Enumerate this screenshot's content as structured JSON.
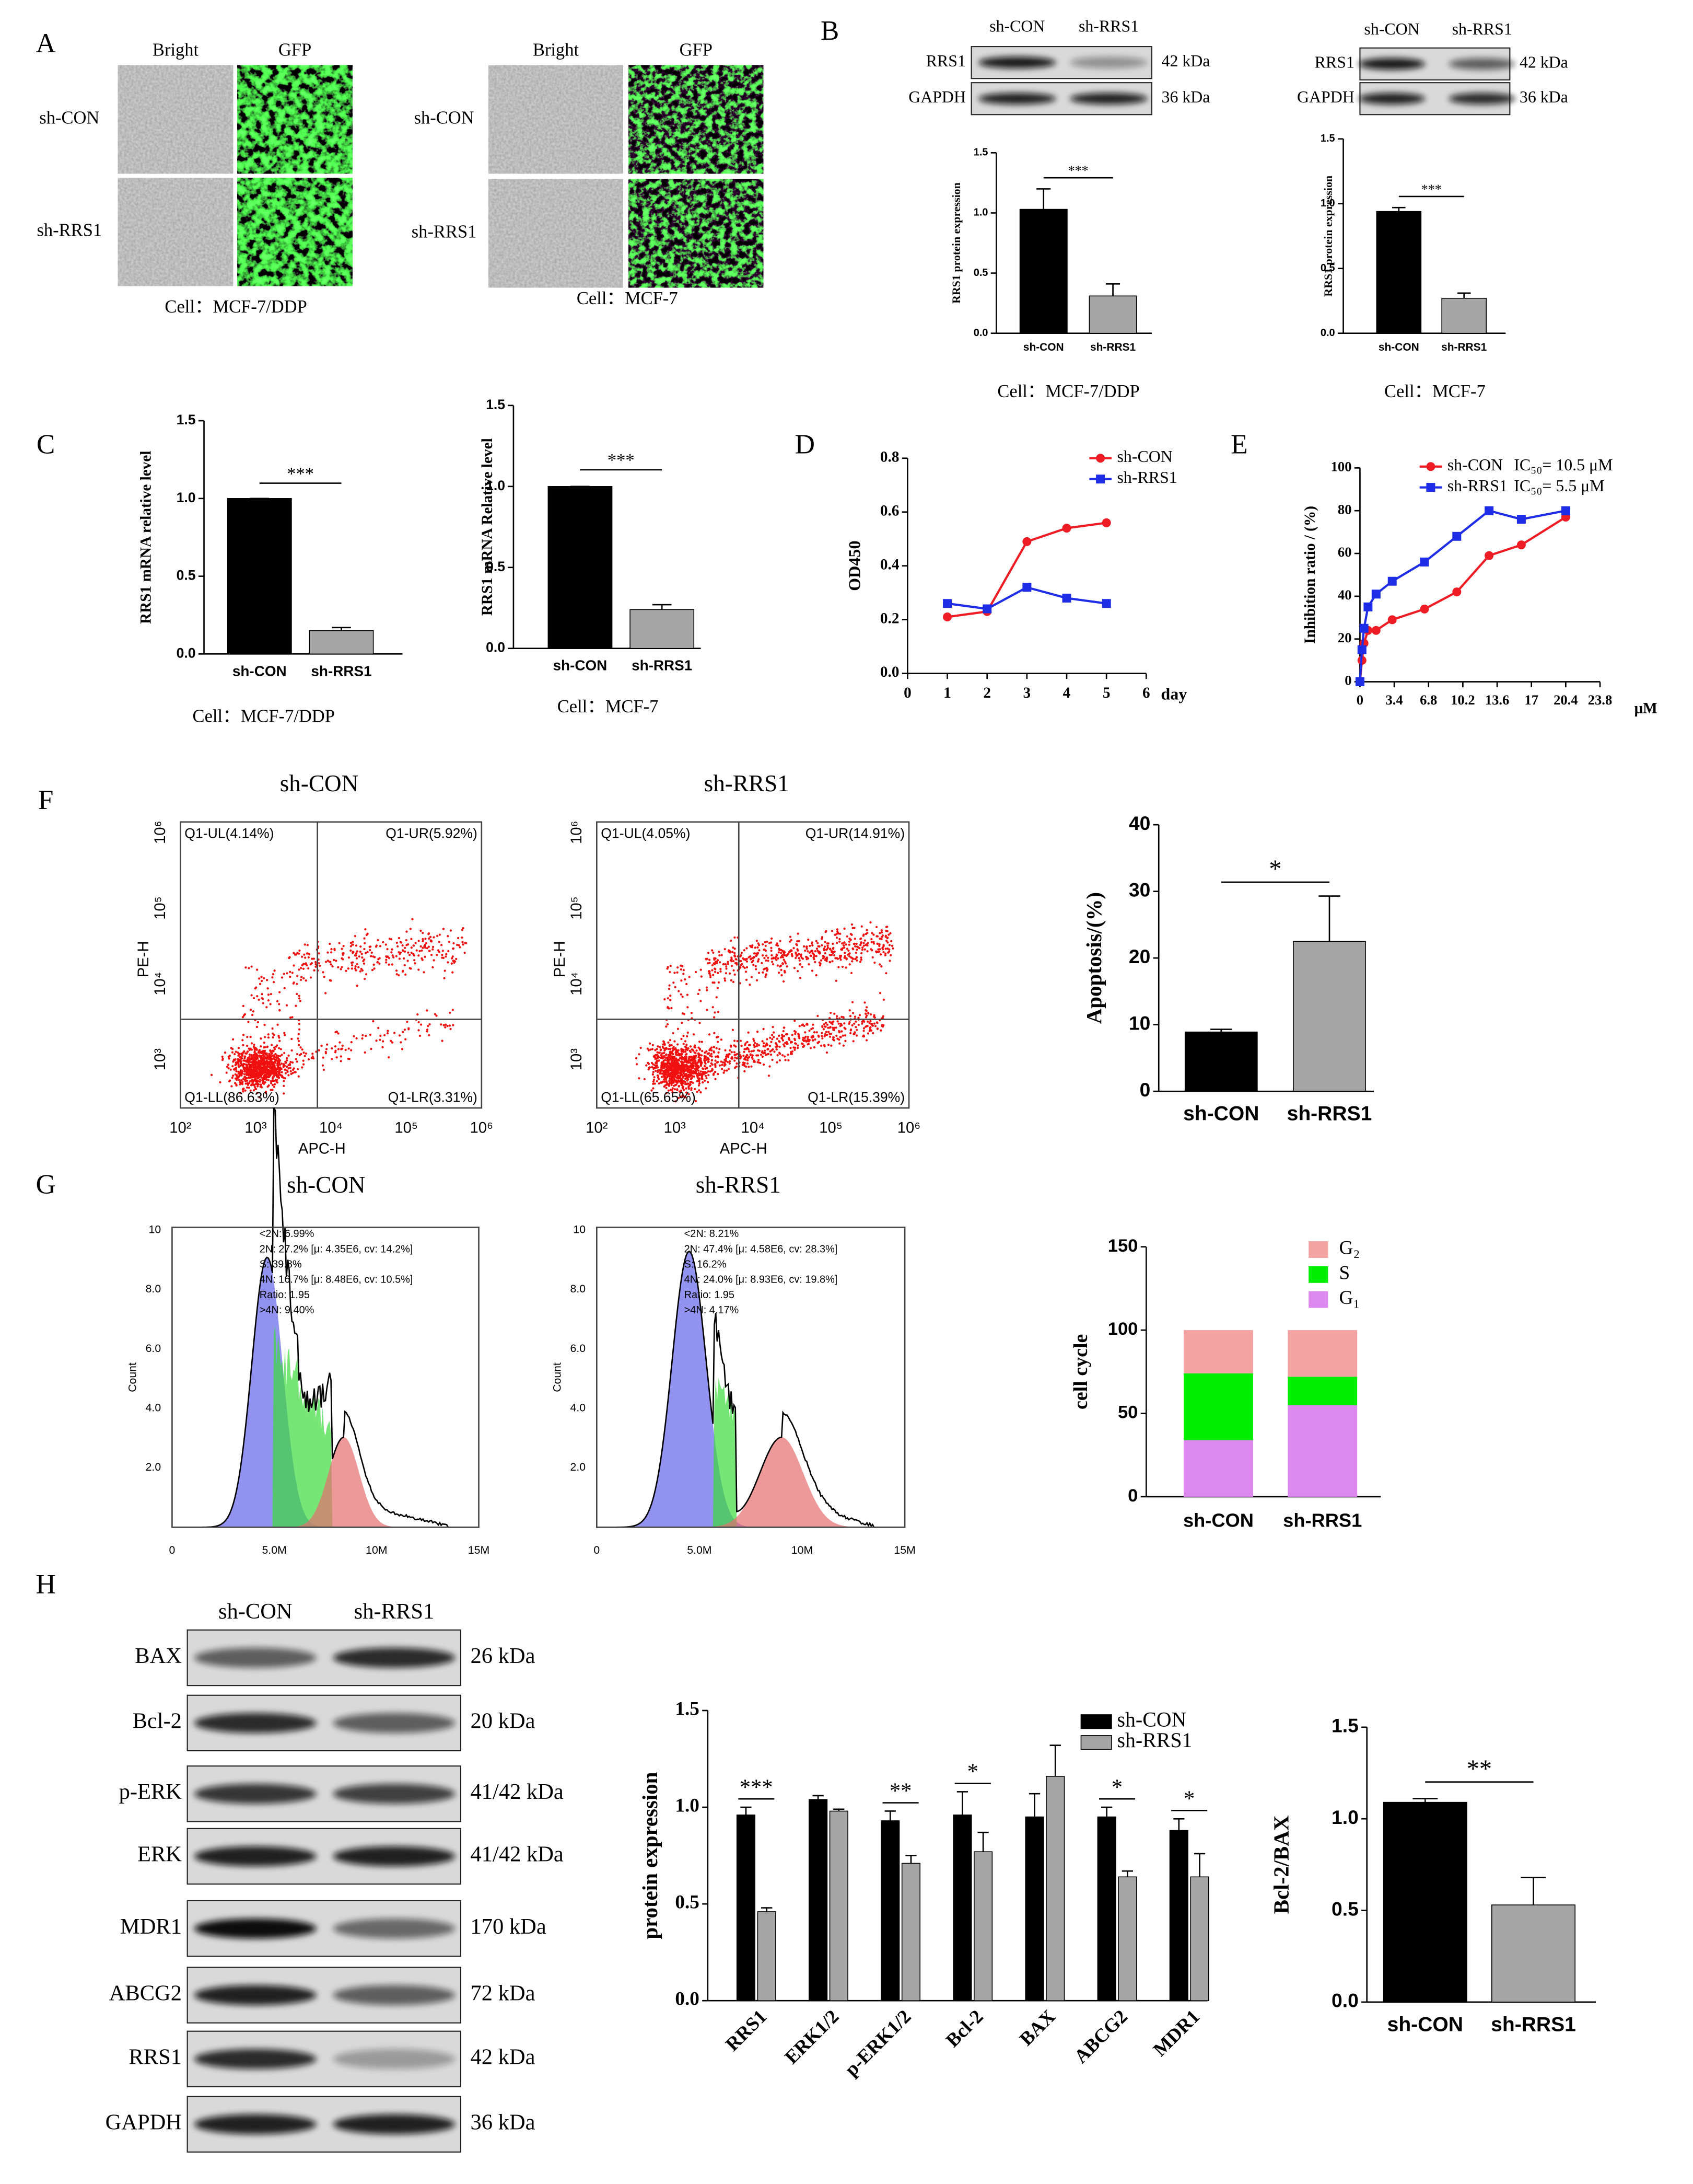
{
  "panel_labels": [
    "A",
    "B",
    "C",
    "D",
    "E",
    "F",
    "G",
    "H"
  ],
  "microscopy": [
    {
      "columns": [
        "Bright",
        "GFP"
      ],
      "rows": [
        "sh-CON",
        "sh-RRS1"
      ],
      "caption": "Cell：MCF-7/DDP"
    },
    {
      "columns": [
        "Bright",
        "GFP"
      ],
      "rows": [
        "sh-CON",
        "sh-RRS1"
      ],
      "caption": "Cell：MCF-7"
    }
  ],
  "blots_b": [
    {
      "lanes": [
        "sh-CON",
        "sh-RRS1"
      ],
      "rows": [
        {
          "protein": "RRS1",
          "size": "42 kDa"
        },
        {
          "protein": "GAPDH",
          "size": "36 kDa"
        }
      ]
    },
    {
      "lanes": [
        "sh-CON",
        "sh-RRS1"
      ],
      "rows": [
        {
          "protein": "RRS1",
          "size": "42 kDa"
        },
        {
          "protein": "GAPDH",
          "size": "36 kDa"
        }
      ]
    }
  ],
  "blot_h": {
    "lanes": [
      "sh-CON",
      "sh-RRS1"
    ],
    "rows": [
      {
        "protein": "BAX",
        "size": "26 kDa"
      },
      {
        "protein": "Bcl-2",
        "size": "20 kDa"
      },
      {
        "protein": "p-ERK",
        "size": "41/42 kDa"
      },
      {
        "protein": "ERK",
        "size": "41/42 kDa"
      },
      {
        "protein": "MDR1",
        "size": "170 kDa"
      },
      {
        "protein": "ABCG2",
        "size": "72 kDa"
      },
      {
        "protein": "RRS1",
        "size": "42 kDa"
      },
      {
        "protein": "GAPDH",
        "size": "36 kDa"
      }
    ]
  },
  "flow_plots": [
    {
      "title": "sh-CON",
      "xlabel": "APC-H",
      "ylabel": "PE-H",
      "xticks": [
        "10²",
        "10³",
        "10⁴",
        "10⁵",
        "10⁶"
      ],
      "yticks": [
        "10³",
        "10⁴",
        "10⁵",
        "10⁶"
      ],
      "quadrants": {
        "UL": "Q1-UL(4.14%)",
        "UR": "Q1-UR(5.92%)",
        "LL": "Q1-LL(86.63%)",
        "LR": "Q1-LR(3.31%)"
      }
    },
    {
      "title": "sh-RRS1",
      "xlabel": "APC-H",
      "ylabel": "PE-H",
      "xticks": [
        "10²",
        "10³",
        "10⁴",
        "10⁵",
        "10⁶"
      ],
      "yticks": [
        "10³",
        "10⁴",
        "10⁵",
        "10⁶"
      ],
      "quadrants": {
        "UL": "Q1-UL(4.05%)",
        "UR": "Q1-UR(14.91%)",
        "LL": "Q1-LL(65.65%)",
        "LR": "Q1-LR(15.39%)"
      }
    }
  ],
  "histograms": [
    {
      "title": "sh-CON",
      "ylabel": "Count",
      "xticks": [
        "0",
        "5.0M",
        "10M",
        "15M"
      ],
      "yticks": [
        "2.0",
        "4.0",
        "6.0",
        "8.0",
        "10"
      ],
      "stats": [
        "<2N: 6.99%",
        "2N: 27.2%  [μ: 4.35E6, cv: 14.2%]",
        "S: 39.8%",
        "4N: 16.7%  [μ: 8.48E6, cv: 10.5%]",
        "Ratio: 1.95",
        ">4N: 9.40%"
      ]
    },
    {
      "title": "sh-RRS1",
      "ylabel": "Count",
      "xticks": [
        "0",
        "5.0M",
        "10M",
        "15M"
      ],
      "yticks": [
        "2.0",
        "4.0",
        "6.0",
        "8.0",
        "10"
      ],
      "stats": [
        "<2N: 8.21%",
        "2N: 47.4%  [μ: 4.58E6, cv: 28.3%]",
        "S: 16.2%",
        "4N: 24.0%  [μ: 8.93E6, cv: 19.8%]",
        "Ratio: 1.95",
        ">4N: 4.17%"
      ]
    }
  ],
  "chart_data": [
    {
      "type": "bar",
      "ylabel": "RRS1 protein expression",
      "categories": [
        "sh-CON",
        "sh-RRS1"
      ],
      "values": [
        1.03,
        0.31
      ],
      "errors": [
        0.17,
        0.1
      ],
      "colors": [
        "#000000",
        "#a6a6a6"
      ],
      "ylim": [
        0,
        1.5
      ],
      "yticks": [
        {
          "value": 0,
          "label": "0.0"
        },
        0.5,
        {
          "value": 1,
          "label": "1.0"
        },
        1.5
      ],
      "annotation": "***",
      "caption": "Cell：MCF-7/DDP"
    },
    {
      "type": "bar",
      "ylabel": "RRS1 protein expression",
      "categories": [
        "sh-CON",
        "sh-RRS1"
      ],
      "values": [
        0.94,
        0.27
      ],
      "errors": [
        0.03,
        0.04
      ],
      "colors": [
        "#000000",
        "#a6a6a6"
      ],
      "ylim": [
        0,
        1.5
      ],
      "yticks": [
        {
          "value": 0,
          "label": "0.0"
        },
        0.5,
        {
          "value": 1,
          "label": "1.0"
        },
        1.5
      ],
      "annotation": "***",
      "caption": "Cell：MCF-7"
    },
    {
      "type": "bar",
      "ylabel": "RRS1 mRNA relative level",
      "categories": [
        "sh-CON",
        "sh-RRS1"
      ],
      "values": [
        1.0,
        0.15
      ],
      "errors": [
        0,
        0.02
      ],
      "colors": [
        "#000000",
        "#a6a6a6"
      ],
      "ylim": [
        0,
        1.5
      ],
      "yticks": [
        {
          "value": 0,
          "label": "0.0"
        },
        0.5,
        {
          "value": 1,
          "label": "1.0"
        },
        1.5
      ],
      "annotation": "***",
      "caption": "Cell：MCF-7/DDP"
    },
    {
      "type": "bar",
      "ylabel": "RRS1 mRNA Relative level",
      "categories": [
        "sh-CON",
        "sh-RRS1"
      ],
      "values": [
        1.0,
        0.24
      ],
      "errors": [
        0,
        0.03
      ],
      "colors": [
        "#000000",
        "#a6a6a6"
      ],
      "ylim": [
        0,
        1.5
      ],
      "yticks": [
        {
          "value": 0,
          "label": "0.0"
        },
        0.5,
        {
          "value": 1,
          "label": "1.0"
        },
        1.5
      ],
      "annotation": "***",
      "caption": "Cell：MCF-7"
    },
    {
      "type": "line",
      "ylabel": "OD450",
      "xlabel": "day",
      "x": [
        1,
        2,
        3,
        4,
        5
      ],
      "series": [
        {
          "name": "sh-CON",
          "color": "#ee1c25",
          "marker": "circle",
          "values": [
            0.21,
            0.23,
            0.49,
            0.54,
            0.56
          ]
        },
        {
          "name": "sh-RRS1",
          "color": "#1f2ee6",
          "marker": "square",
          "values": [
            0.26,
            0.24,
            0.32,
            0.28,
            0.26
          ]
        }
      ],
      "xlim": [
        0,
        6
      ],
      "xticks": [
        0,
        1,
        2,
        3,
        4,
        5,
        6
      ],
      "ylim": [
        0,
        0.8
      ],
      "yticks": [
        {
          "value": 0,
          "label": "0.0"
        },
        0.2,
        0.4,
        0.6,
        0.8
      ]
    },
    {
      "type": "line",
      "ylabel": "Inhibition ratio / (%)",
      "xlabel": "μM",
      "x": [
        0,
        0.2,
        0.4,
        0.8,
        1.6,
        3.2,
        6.4,
        9.6,
        12.8,
        16,
        20.4
      ],
      "series": [
        {
          "name": "sh-CON",
          "color": "#ee1c25",
          "marker": "circle",
          "values": [
            0,
            10,
            18,
            24,
            24,
            29,
            34,
            42,
            59,
            64,
            77
          ]
        },
        {
          "name": "sh-RRS1",
          "color": "#1f2ee6",
          "marker": "square",
          "values": [
            0,
            15,
            25,
            35,
            41,
            47,
            56,
            68,
            80,
            76,
            80
          ]
        }
      ],
      "legend_notes": [
        "IC₅₀=  10.5 μM",
        "IC₅₀=  5.5 μM"
      ],
      "xlim": [
        0,
        23.8
      ],
      "xticks": [
        0,
        3.4,
        6.8,
        10.2,
        13.6,
        17,
        20.4,
        23.8
      ],
      "ylim": [
        0,
        100
      ],
      "yticks": [
        0,
        20,
        40,
        60,
        80,
        100
      ]
    },
    {
      "type": "bar",
      "ylabel": "Apoptosis/(%)",
      "categories": [
        "sh-CON",
        "sh-RRS1"
      ],
      "values": [
        8.9,
        22.5
      ],
      "errors": [
        0.4,
        6.8
      ],
      "colors": [
        "#000000",
        "#a6a6a6"
      ],
      "ylim": [
        0,
        40
      ],
      "yticks": [
        0,
        10,
        20,
        30,
        40
      ],
      "annotation": "*"
    },
    {
      "type": "stacked_bar",
      "ylabel": "cell cycle",
      "categories": [
        "sh-CON",
        "sh-RRS1"
      ],
      "series": [
        {
          "name": "G₁",
          "color": "#dd88ee",
          "values": [
            34,
            55
          ]
        },
        {
          "name": "S",
          "color": "#00ee00",
          "values": [
            40,
            17
          ]
        },
        {
          "name": "G₂",
          "color": "#f4a3a3",
          "values": [
            26,
            28
          ]
        }
      ],
      "ylim": [
        0,
        150
      ],
      "yticks": [
        0,
        50,
        100,
        150
      ]
    },
    {
      "type": "grouped_bar",
      "ylabel": "protein expression",
      "categories": [
        "RRS1",
        "ERK1/2",
        "p-ERK1/2",
        "Bcl-2",
        "BAX",
        "ABCG2",
        "MDR1"
      ],
      "series": [
        {
          "name": "sh-CON",
          "color": "#000000",
          "values": [
            0.96,
            1.04,
            0.93,
            0.96,
            0.95,
            0.95,
            0.88
          ],
          "errors": [
            0.04,
            0.02,
            0.05,
            0.12,
            0.12,
            0.05,
            0.06
          ]
        },
        {
          "name": "sh-RRS1",
          "color": "#a6a6a6",
          "values": [
            0.46,
            0.98,
            0.71,
            0.77,
            1.16,
            0.64,
            0.64
          ],
          "errors": [
            0.02,
            0.01,
            0.04,
            0.1,
            0.16,
            0.03,
            0.12
          ]
        }
      ],
      "annotations": [
        "***",
        null,
        "**",
        "*",
        null,
        "*",
        "*"
      ],
      "ylim": [
        0,
        1.5
      ],
      "yticks": [
        {
          "value": 0,
          "label": "0.0"
        },
        0.5,
        {
          "value": 1,
          "label": "1.0"
        },
        1.5
      ]
    },
    {
      "type": "bar",
      "ylabel": "Bcl-2/BAX",
      "categories": [
        "sh-CON",
        "sh-RRS1"
      ],
      "values": [
        1.09,
        0.53
      ],
      "errors": [
        0.02,
        0.15
      ],
      "colors": [
        "#000000",
        "#a6a6a6"
      ],
      "ylim": [
        0,
        1.5
      ],
      "yticks": [
        {
          "value": 0,
          "label": "0.0"
        },
        0.5,
        {
          "value": 1,
          "label": "1.0"
        },
        1.5
      ],
      "annotation": "**"
    }
  ]
}
